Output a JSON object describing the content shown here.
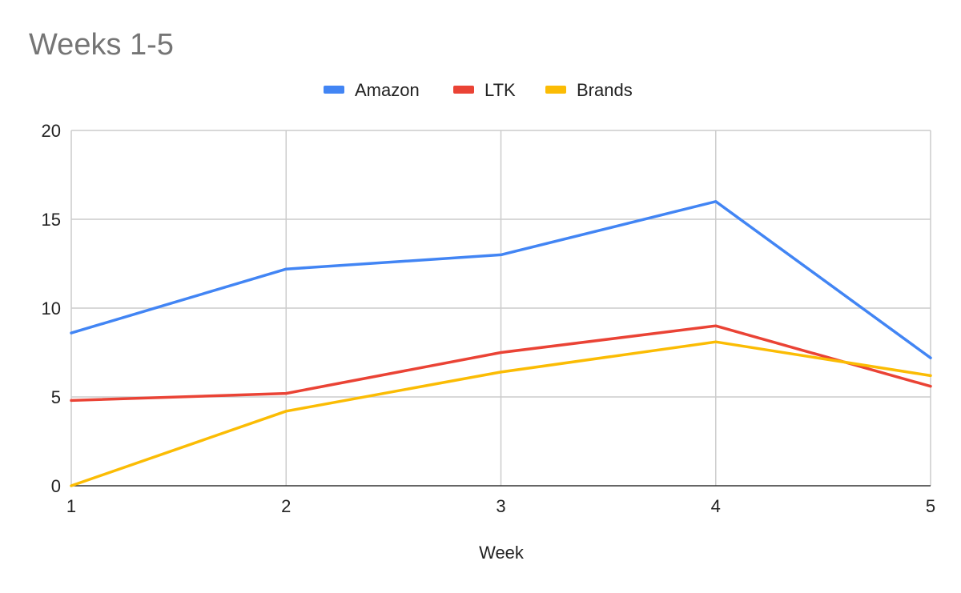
{
  "chart_data": {
    "type": "line",
    "title": "Weeks 1-5",
    "xlabel": "Week",
    "ylabel": "",
    "x": [
      1,
      2,
      3,
      4,
      5
    ],
    "xlim": [
      1,
      5
    ],
    "ylim": [
      0,
      20
    ],
    "yticks": [
      0,
      5,
      10,
      15,
      20
    ],
    "xticks": [
      1,
      2,
      3,
      4,
      5
    ],
    "grid": true,
    "legend": "top-center",
    "series": [
      {
        "name": "Amazon",
        "color": "#4285f4",
        "values": [
          8.6,
          12.2,
          13.0,
          16.0,
          7.2
        ]
      },
      {
        "name": "LTK",
        "color": "#ea4335",
        "values": [
          4.8,
          5.2,
          7.5,
          9.0,
          5.6
        ]
      },
      {
        "name": "Brands",
        "color": "#fbbc04",
        "values": [
          0.0,
          4.2,
          6.4,
          8.1,
          6.2
        ]
      }
    ]
  }
}
